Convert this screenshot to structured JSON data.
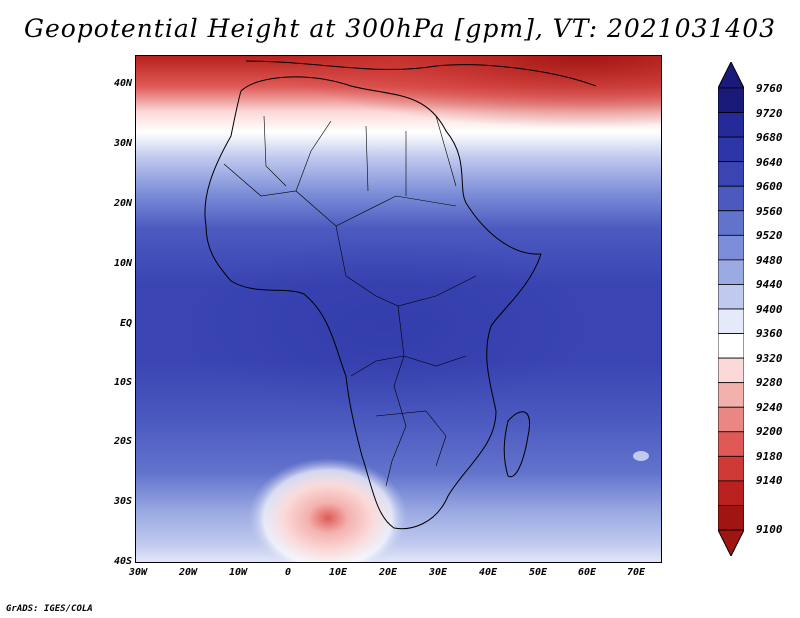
{
  "title": "Geopotential Height at 300hPa [gpm], VT: 2021031403",
  "map": {
    "region": "Africa",
    "y_axis_labels": [
      "40N",
      "30N",
      "20N",
      "10N",
      "EQ",
      "10S",
      "20S",
      "30S",
      "40S"
    ],
    "x_axis_labels": [
      "30W",
      "20W",
      "10W",
      "0",
      "10E",
      "20E",
      "30E",
      "40E",
      "50E",
      "60E",
      "70E"
    ]
  },
  "colorbar": {
    "levels": [
      "9760",
      "9720",
      "9680",
      "9640",
      "9600",
      "9560",
      "9520",
      "9480",
      "9440",
      "9400",
      "9360",
      "9320",
      "9280",
      "9240",
      "9200",
      "9180",
      "9140",
      "9100"
    ],
    "colors": [
      "#1a1a7a",
      "#242a9a",
      "#2d36a6",
      "#3a45b3",
      "#4c5ac0",
      "#6273cc",
      "#7d8ed8",
      "#9caae3",
      "#c0c9ee",
      "#e5eafa",
      "#ffffff",
      "#fbd9d8",
      "#f3b1ae",
      "#e98784",
      "#df5a57",
      "#cf3a36",
      "#b8211d",
      "#a01512"
    ]
  },
  "credit": "GrADS: IGES/COLA"
}
